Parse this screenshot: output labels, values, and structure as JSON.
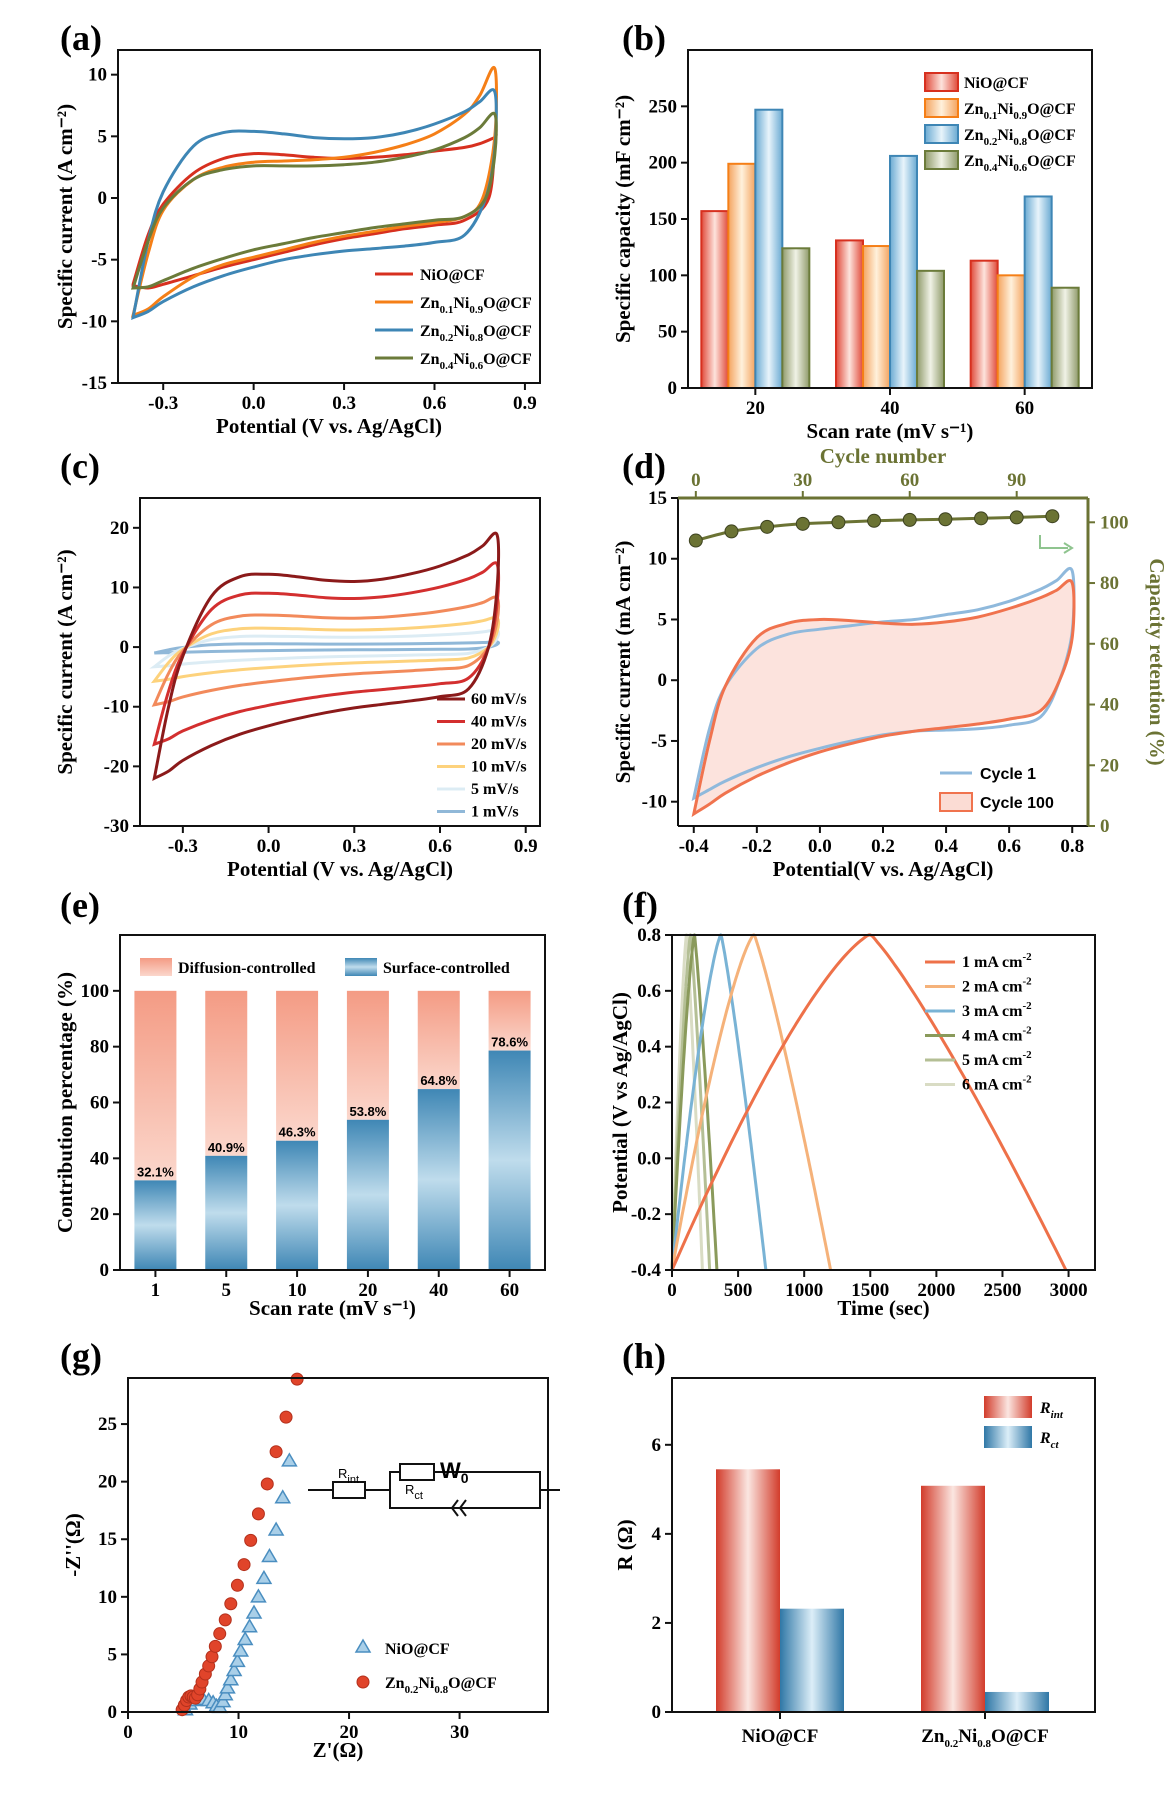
{
  "figure": {
    "panel_labels": [
      "(a)",
      "(b)",
      "(c)",
      "(d)",
      "(e)",
      "(f)",
      "(g)",
      "(h)"
    ]
  },
  "chart_data": [
    {
      "id": "a",
      "type": "line",
      "xlabel": "Potential (V vs. Ag/AgCl)",
      "ylabel": "Specific current (A cm⁻²)",
      "xlim": [
        -0.45,
        0.95
      ],
      "ylim": [
        -15,
        12
      ],
      "xticks": [
        -0.3,
        0.0,
        0.3,
        0.6,
        0.9
      ],
      "yticks": [
        -15,
        -10,
        -5,
        0,
        5,
        10
      ],
      "legend_position": "bottom-right",
      "series": [
        {
          "name": "NiO@CF",
          "label_parts": [
            "NiO@CF"
          ],
          "color": "#d7301f",
          "x": [
            -0.4,
            -0.35,
            -0.3,
            -0.2,
            -0.1,
            0.0,
            0.1,
            0.2,
            0.3,
            0.4,
            0.5,
            0.6,
            0.7,
            0.75,
            0.8,
            0.8,
            0.78,
            0.7,
            0.6,
            0.5,
            0.4,
            0.3,
            0.2,
            0.1,
            0.0,
            -0.1,
            -0.2,
            -0.3,
            -0.35,
            -0.4
          ],
          "y": [
            -7.0,
            -3.0,
            -0.5,
            2.0,
            3.2,
            3.6,
            3.5,
            3.3,
            3.2,
            3.3,
            3.5,
            3.8,
            4.1,
            4.4,
            4.9,
            4.8,
            0.0,
            -1.8,
            -2.2,
            -2.5,
            -2.9,
            -3.3,
            -3.8,
            -4.4,
            -5.0,
            -5.6,
            -6.3,
            -7.0,
            -7.3,
            -7.1
          ]
        },
        {
          "name": "Zn0.1Ni0.9O@CF",
          "label_parts": [
            "Zn",
            "0.1",
            "Ni",
            "0.9",
            "O@CF"
          ],
          "color": "#f57f17",
          "x": [
            -0.4,
            -0.35,
            -0.3,
            -0.2,
            -0.1,
            0.0,
            0.1,
            0.2,
            0.3,
            0.4,
            0.5,
            0.6,
            0.7,
            0.75,
            0.8,
            0.8,
            0.76,
            0.7,
            0.6,
            0.5,
            0.4,
            0.3,
            0.2,
            0.1,
            0.0,
            -0.1,
            -0.2,
            -0.3,
            -0.35,
            -0.4
          ],
          "y": [
            -9.5,
            -4.5,
            -1.0,
            1.5,
            2.5,
            2.9,
            3.0,
            3.1,
            3.3,
            3.7,
            4.3,
            5.2,
            6.8,
            8.3,
            10.5,
            5.0,
            0.0,
            -1.5,
            -2.0,
            -2.3,
            -2.7,
            -3.1,
            -3.6,
            -4.2,
            -4.8,
            -5.4,
            -6.4,
            -8.0,
            -9.0,
            -9.5
          ]
        },
        {
          "name": "Zn0.2Ni0.8O@CF",
          "label_parts": [
            "Zn",
            "0.2",
            "Ni",
            "0.8",
            "O@CF"
          ],
          "color": "#3e86b5",
          "x": [
            -0.4,
            -0.35,
            -0.3,
            -0.2,
            -0.1,
            0.0,
            0.1,
            0.2,
            0.3,
            0.4,
            0.5,
            0.6,
            0.7,
            0.75,
            0.8,
            0.8,
            0.77,
            0.7,
            0.6,
            0.5,
            0.4,
            0.3,
            0.2,
            0.1,
            0.0,
            -0.1,
            -0.2,
            -0.3,
            -0.35,
            -0.4
          ],
          "y": [
            -9.7,
            -3.5,
            0.5,
            4.2,
            5.3,
            5.4,
            5.2,
            4.9,
            4.8,
            4.9,
            5.3,
            6.0,
            7.0,
            7.8,
            8.6,
            4.0,
            0.0,
            -3.0,
            -3.6,
            -3.9,
            -4.1,
            -4.3,
            -4.6,
            -5.0,
            -5.6,
            -6.3,
            -7.2,
            -8.4,
            -9.2,
            -9.7
          ]
        },
        {
          "name": "Zn0.4Ni0.6O@CF",
          "label_parts": [
            "Zn",
            "0.4",
            "Ni",
            "0.6",
            "O@CF"
          ],
          "color": "#6b7b3a",
          "x": [
            -0.4,
            -0.35,
            -0.3,
            -0.2,
            -0.1,
            0.0,
            0.1,
            0.2,
            0.3,
            0.4,
            0.5,
            0.6,
            0.7,
            0.75,
            0.8,
            0.8,
            0.77,
            0.7,
            0.6,
            0.5,
            0.4,
            0.3,
            0.2,
            0.1,
            0.0,
            -0.1,
            -0.2,
            -0.3,
            -0.35,
            -0.4
          ],
          "y": [
            -7.3,
            -3.5,
            -0.8,
            1.5,
            2.3,
            2.6,
            2.6,
            2.6,
            2.7,
            2.9,
            3.3,
            3.9,
            4.9,
            5.7,
            6.8,
            3.5,
            0.0,
            -1.5,
            -1.8,
            -2.1,
            -2.4,
            -2.8,
            -3.2,
            -3.7,
            -4.2,
            -4.9,
            -5.7,
            -6.7,
            -7.2,
            -7.3
          ]
        }
      ]
    },
    {
      "id": "b",
      "type": "bar",
      "xlabel": "Scan rate (mV s⁻¹)",
      "ylabel": "Specific capacity (mF cm⁻²)",
      "categories": [
        "20",
        "40",
        "60"
      ],
      "ylim": [
        0,
        300
      ],
      "yticks": [
        0,
        50,
        100,
        150,
        200,
        250
      ],
      "legend_position": "top-right",
      "series": [
        {
          "name": "NiO@CF",
          "label_parts": [
            "NiO@CF"
          ],
          "color": "#d7301f",
          "values": [
            157,
            131,
            113
          ]
        },
        {
          "name": "Zn0.1Ni0.9O@CF",
          "label_parts": [
            "Zn",
            "0.1",
            "Ni",
            "0.9",
            "O@CF"
          ],
          "color": "#f57f17",
          "values": [
            199,
            126,
            100
          ]
        },
        {
          "name": "Zn0.2Ni0.8O@CF",
          "label_parts": [
            "Zn",
            "0.2",
            "Ni",
            "0.8",
            "O@CF"
          ],
          "color": "#3e86b5",
          "values": [
            247,
            206,
            170
          ]
        },
        {
          "name": "Zn0.4Ni0.6O@CF",
          "label_parts": [
            "Zn",
            "0.4",
            "Ni",
            "0.6",
            "O@CF"
          ],
          "color": "#6b7b3a",
          "values": [
            124,
            104,
            89
          ]
        }
      ]
    },
    {
      "id": "c",
      "type": "line",
      "xlabel": "Potential (V vs. Ag/AgCl)",
      "ylabel": "Specific current (A cm⁻²)",
      "xlim": [
        -0.45,
        0.95
      ],
      "ylim": [
        -30,
        25
      ],
      "xticks": [
        -0.3,
        0.0,
        0.3,
        0.6,
        0.9
      ],
      "yticks": [
        -30,
        -20,
        -10,
        0,
        10,
        20
      ],
      "legend_position": "bottom-right",
      "series": [
        {
          "name": "60 mV/s",
          "color": "#8b1a1a",
          "scale": 1.0
        },
        {
          "name": "40 mV/s",
          "color": "#d32f2f",
          "scale": 0.74
        },
        {
          "name": "20 mV/s",
          "color": "#f28a5b",
          "scale": 0.44
        },
        {
          "name": "10 mV/s",
          "color": "#fdd27c",
          "scale": 0.26
        },
        {
          "name": "5 mV/s",
          "color": "#dcecf4",
          "scale": 0.15
        },
        {
          "name": "1 mV/s",
          "color": "#90b8d8",
          "scale": 0.045
        }
      ],
      "base_loop": {
        "x": [
          -0.4,
          -0.35,
          -0.3,
          -0.2,
          -0.1,
          0.0,
          0.1,
          0.2,
          0.3,
          0.4,
          0.5,
          0.6,
          0.7,
          0.75,
          0.8,
          0.8,
          0.77,
          0.7,
          0.6,
          0.5,
          0.4,
          0.3,
          0.2,
          0.1,
          0.0,
          -0.1,
          -0.2,
          -0.3,
          -0.35,
          -0.4
        ],
        "y": [
          -22.0,
          -10.0,
          -1.5,
          8.5,
          11.8,
          12.2,
          11.8,
          11.2,
          11.0,
          11.4,
          12.3,
          13.6,
          15.5,
          17.0,
          18.8,
          10.0,
          0.0,
          -7.0,
          -8.3,
          -9.0,
          -9.6,
          -10.2,
          -11.0,
          -12.0,
          -13.2,
          -14.6,
          -16.5,
          -19.0,
          -20.8,
          -22.0
        ]
      }
    },
    {
      "id": "d",
      "type": "line",
      "xlabel": "Potential(V vs. Ag/AgCl)",
      "ylabel": "Specific current (mA cm⁻²)",
      "y2label": "Capacity retention (%)",
      "top_xlabel": "Cycle number",
      "xlim": [
        -0.45,
        0.85
      ],
      "ylim": [
        -12,
        15
      ],
      "y2lim": [
        0,
        108
      ],
      "top_xlim": [
        -5,
        110
      ],
      "xticks": [
        -0.4,
        -0.2,
        0.0,
        0.2,
        0.4,
        0.6,
        0.8
      ],
      "yticks": [
        -10,
        -5,
        0,
        5,
        10,
        15
      ],
      "y2ticks": [
        0,
        20,
        40,
        60,
        80,
        100
      ],
      "top_xticks": [
        0,
        30,
        60,
        90
      ],
      "legend_position": "bottom-right",
      "series": [
        {
          "name": "Cycle 1",
          "color": "#8fb9dc",
          "width": 3,
          "x": [
            -0.4,
            -0.35,
            -0.3,
            -0.2,
            -0.1,
            0.0,
            0.1,
            0.2,
            0.3,
            0.4,
            0.5,
            0.6,
            0.7,
            0.75,
            0.8,
            0.8,
            0.76,
            0.7,
            0.6,
            0.5,
            0.4,
            0.3,
            0.2,
            0.1,
            0.0,
            -0.1,
            -0.2,
            -0.3,
            -0.35,
            -0.4
          ],
          "y": [
            -9.7,
            -4.0,
            -0.5,
            2.6,
            3.8,
            4.2,
            4.5,
            4.8,
            5.0,
            5.4,
            5.8,
            6.5,
            7.5,
            8.2,
            9.0,
            4.0,
            0.0,
            -3.0,
            -3.7,
            -4.0,
            -4.1,
            -4.2,
            -4.5,
            -5.0,
            -5.6,
            -6.3,
            -7.2,
            -8.3,
            -9.0,
            -9.7
          ]
        },
        {
          "name": "Cycle 100",
          "color": "#f0734e",
          "fill": "#fbdcd4",
          "width": 3,
          "x": [
            -0.4,
            -0.35,
            -0.3,
            -0.2,
            -0.1,
            0.0,
            0.1,
            0.2,
            0.3,
            0.4,
            0.5,
            0.6,
            0.7,
            0.75,
            0.8,
            0.8,
            0.76,
            0.7,
            0.6,
            0.5,
            0.4,
            0.3,
            0.2,
            0.1,
            0.0,
            -0.1,
            -0.2,
            -0.3,
            -0.35,
            -0.4
          ],
          "y": [
            -11.0,
            -5.0,
            -0.5,
            3.5,
            4.7,
            5.0,
            4.9,
            4.7,
            4.6,
            4.8,
            5.2,
            5.9,
            6.8,
            7.4,
            8.0,
            3.5,
            0.0,
            -2.5,
            -3.2,
            -3.6,
            -3.9,
            -4.2,
            -4.6,
            -5.2,
            -5.9,
            -6.8,
            -7.9,
            -9.3,
            -10.2,
            -11.0
          ]
        }
      ],
      "retention": {
        "color": "#6b7334",
        "cycles": [
          0,
          10,
          20,
          30,
          40,
          50,
          60,
          70,
          80,
          90,
          100
        ],
        "values": [
          94.0,
          97.0,
          98.5,
          99.5,
          100.0,
          100.5,
          100.8,
          101.0,
          101.3,
          101.6,
          102.0
        ]
      }
    },
    {
      "id": "e",
      "type": "bar",
      "stacked": true,
      "xlabel": "Scan rate (mV s⁻¹)",
      "ylabel": "Contribution percentage (%)",
      "categories": [
        "1",
        "5",
        "10",
        "20",
        "40",
        "60"
      ],
      "ylim": [
        0,
        120
      ],
      "yticks": [
        0,
        20,
        40,
        60,
        80,
        100
      ],
      "legend_position": "top",
      "series": [
        {
          "name": "Surface-controlled",
          "color": "#3c87b4",
          "values": [
            32.1,
            40.9,
            46.3,
            53.8,
            64.8,
            78.6
          ]
        },
        {
          "name": "Diffusion-controlled",
          "color": "#f4a28c",
          "values": [
            67.9,
            59.1,
            53.7,
            46.2,
            35.2,
            21.4
          ]
        }
      ],
      "data_labels": [
        "32.1%",
        "40.9%",
        "46.3%",
        "53.8%",
        "64.8%",
        "78.6%"
      ]
    },
    {
      "id": "f",
      "type": "line",
      "xlabel": "Time (sec)",
      "ylabel": "Potential (V vs Ag/AgCl)",
      "xlim": [
        0,
        3200
      ],
      "ylim": [
        -0.4,
        0.8
      ],
      "xticks": [
        0,
        500,
        1000,
        1500,
        2000,
        2500,
        3000
      ],
      "yticks": [
        -0.4,
        -0.2,
        0.0,
        0.2,
        0.4,
        0.6,
        0.8
      ],
      "legend_position": "top-right",
      "series": [
        {
          "name": "1 mA cm⁻²",
          "label_parts": [
            "1 mA cm",
            "-2"
          ],
          "color": "#ee7149",
          "tc": 1500,
          "td": 2980
        },
        {
          "name": "2 mA cm⁻²",
          "label_parts": [
            "2 mA cm",
            "-2"
          ],
          "color": "#f5b27a",
          "tc": 620,
          "td": 1200
        },
        {
          "name": "3 mA cm⁻²",
          "label_parts": [
            "3 mA cm",
            "-2"
          ],
          "color": "#79b3d5",
          "tc": 370,
          "td": 710
        },
        {
          "name": "4 mA cm⁻²",
          "label_parts": [
            "4 mA cm",
            "-2"
          ],
          "color": "#8a9a5b",
          "tc": 170,
          "td": 340
        },
        {
          "name": "5 mA cm⁻²",
          "label_parts": [
            "5 mA cm",
            "-2"
          ],
          "color": "#b4bf95",
          "tc": 140,
          "td": 285
        },
        {
          "name": "6 mA cm⁻²",
          "label_parts": [
            "6 mA cm",
            "-2"
          ],
          "color": "#d9dcc4",
          "tc": 110,
          "td": 230
        }
      ]
    },
    {
      "id": "g",
      "type": "scatter",
      "xlabel": "Z'(Ω)",
      "ylabel": "-Z''(Ω)",
      "xlim": [
        0,
        38
      ],
      "ylim": [
        0,
        29
      ],
      "xticks": [
        0,
        10,
        20,
        30
      ],
      "yticks": [
        0,
        5,
        10,
        15,
        20,
        25
      ],
      "legend_position": "bottom-right",
      "series": [
        {
          "name": "NiO@CF",
          "label_parts": [
            "NiO@CF"
          ],
          "marker": "triangle",
          "color": "#4a8ec0",
          "x": [
            5.2,
            5.6,
            6.2,
            6.8,
            7.3,
            7.7,
            8.0,
            8.3,
            8.6,
            8.8,
            9.0,
            9.3,
            9.6,
            9.9,
            10.2,
            10.6,
            11.0,
            11.4,
            11.8,
            12.3,
            12.8,
            13.4,
            14.0,
            14.6
          ],
          "y": [
            0.2,
            0.7,
            1.0,
            1.1,
            1.0,
            0.8,
            0.5,
            0.4,
            0.9,
            1.5,
            2.1,
            2.8,
            3.6,
            4.4,
            5.3,
            6.3,
            7.4,
            8.6,
            10.0,
            11.6,
            13.5,
            15.8,
            18.6,
            21.8
          ]
        },
        {
          "name": "Zn0.2Ni0.8O@CF",
          "label_parts": [
            "Zn",
            "0.2",
            "Ni",
            "0.8",
            "O@CF"
          ],
          "marker": "circle",
          "color": "#e0442a",
          "x": [
            4.9,
            5.1,
            5.3,
            5.5,
            5.7,
            5.9,
            6.1,
            6.3,
            6.5,
            6.7,
            7.0,
            7.3,
            7.6,
            7.9,
            8.3,
            8.8,
            9.3,
            9.9,
            10.5,
            11.1,
            11.8,
            12.6,
            13.4,
            14.3,
            15.3
          ],
          "y": [
            0.2,
            0.6,
            1.0,
            1.3,
            1.4,
            1.3,
            1.2,
            1.5,
            2.0,
            2.6,
            3.3,
            4.0,
            4.8,
            5.7,
            6.8,
            8.0,
            9.4,
            11.0,
            12.8,
            14.9,
            17.2,
            19.8,
            22.6,
            25.6,
            28.9
          ]
        }
      ],
      "inset_circuit": {
        "labels": [
          "R",
          "int",
          "R",
          "ct",
          "W",
          "0"
        ]
      }
    },
    {
      "id": "h",
      "type": "bar",
      "xlabel": "",
      "ylabel": "R (Ω)",
      "categories_parts": [
        [
          "NiO@CF"
        ],
        [
          "Zn",
          "0.2",
          "Ni",
          "0.8",
          "O@CF"
        ]
      ],
      "ylim": [
        0,
        7.5
      ],
      "yticks": [
        0,
        2,
        4,
        6
      ],
      "legend_position": "top-right",
      "series": [
        {
          "name": "Rint",
          "label_parts": [
            "R",
            "int"
          ],
          "color": "#d94a38",
          "values": [
            5.45,
            5.08
          ]
        },
        {
          "name": "Rct",
          "label_parts": [
            "R",
            "ct"
          ],
          "color": "#3c7fae",
          "values": [
            2.32,
            0.45
          ]
        }
      ]
    }
  ]
}
